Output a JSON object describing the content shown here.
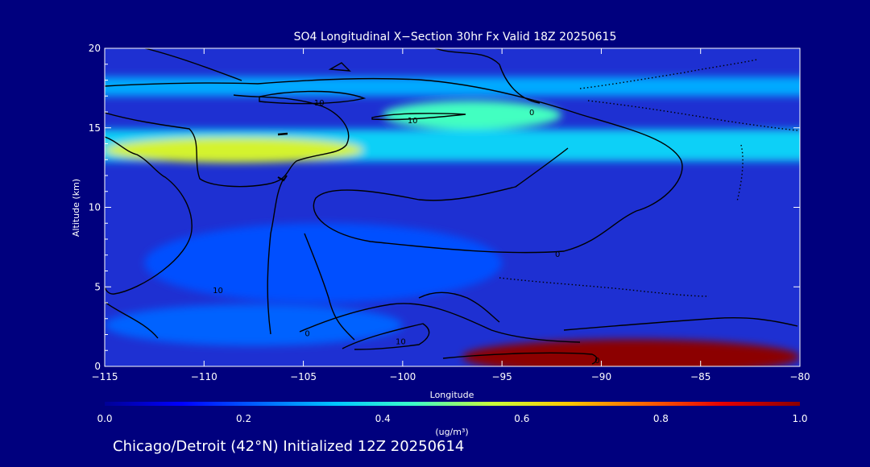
{
  "chart_data": {
    "type": "heatmap",
    "title": "SO4 Longitudinal X−Section 30hr  Fx Valid 18Z 20250615",
    "subtitle": "Chicago/Detroit (42°N) Initialized 12Z 20250614",
    "xlabel": "Longitude",
    "ylabel": "Altitude (km)",
    "xlim": [
      -115,
      -80
    ],
    "ylim": [
      0,
      20
    ],
    "x_ticks": [
      -115,
      -110,
      -105,
      -100,
      -95,
      -90,
      -85,
      -80
    ],
    "x_tick_labels": [
      "−115",
      "−110",
      "−105",
      "−100",
      "−95",
      "−90",
      "−85",
      "−80"
    ],
    "y_ticks": [
      0,
      5,
      10,
      15,
      20
    ],
    "y_tick_labels": [
      "0",
      "5",
      "10",
      "15",
      "20"
    ],
    "colorbar": {
      "label": "(ug/m³)",
      "range": [
        0,
        1
      ],
      "ticks": [
        "0.0",
        "0.2",
        "0.4",
        "0.6",
        "0.8",
        "1.0"
      ],
      "colors": [
        "#000096",
        "#0000ff",
        "#0064ff",
        "#00c8ff",
        "#3cffc8",
        "#c8ff3c",
        "#ffc800",
        "#ff6400",
        "#e60000",
        "#8c0000"
      ]
    },
    "concentration_features": [
      {
        "name": "upper layer",
        "lon_start": -115,
        "lon_end": -80,
        "alt_center": 17.6,
        "alt_half_width": 0.6,
        "value": 0.3
      },
      {
        "name": "jet-level plume",
        "lon_start": -101,
        "lon_end": -92,
        "alt_center": 15.8,
        "alt_half_width": 0.9,
        "value": 0.45
      },
      {
        "name": "tropopause band",
        "lon_start": -115,
        "lon_end": -80,
        "alt_center": 13.9,
        "alt_half_width": 1.0,
        "value": 0.35
      },
      {
        "name": "west peak",
        "lon_start": -115,
        "lon_end": -102,
        "alt_center": 13.6,
        "alt_half_width": 0.8,
        "value": 0.58
      },
      {
        "name": "mid-level patches",
        "lon_start": -113,
        "lon_end": -95,
        "alt_center": 6.5,
        "alt_half_width": 2.5,
        "value": 0.2
      },
      {
        "name": "low-level west",
        "lon_start": -115,
        "lon_end": -100,
        "alt_center": 2.6,
        "alt_half_width": 1.3,
        "value": 0.22
      },
      {
        "name": "boundary layer east",
        "lon_start": -97,
        "lon_end": -80,
        "alt_center": 0.6,
        "alt_half_width": 1.1,
        "value": 1.0
      }
    ],
    "contour_labels": [
      {
        "text": "10",
        "lon": -109.3,
        "alt": 4.8
      },
      {
        "text": "10",
        "lon": -104.2,
        "alt": 16.6
      },
      {
        "text": "10",
        "lon": -99.5,
        "alt": 15.5
      },
      {
        "text": "0",
        "lon": -93.5,
        "alt": 16.0
      },
      {
        "text": "0",
        "lon": -92.2,
        "alt": 7.1
      },
      {
        "text": "0",
        "lon": -104.8,
        "alt": 2.1
      },
      {
        "text": "10",
        "lon": -100.1,
        "alt": 1.6
      },
      {
        "text": "0",
        "lon": -90.2,
        "alt": 0.4
      }
    ]
  }
}
